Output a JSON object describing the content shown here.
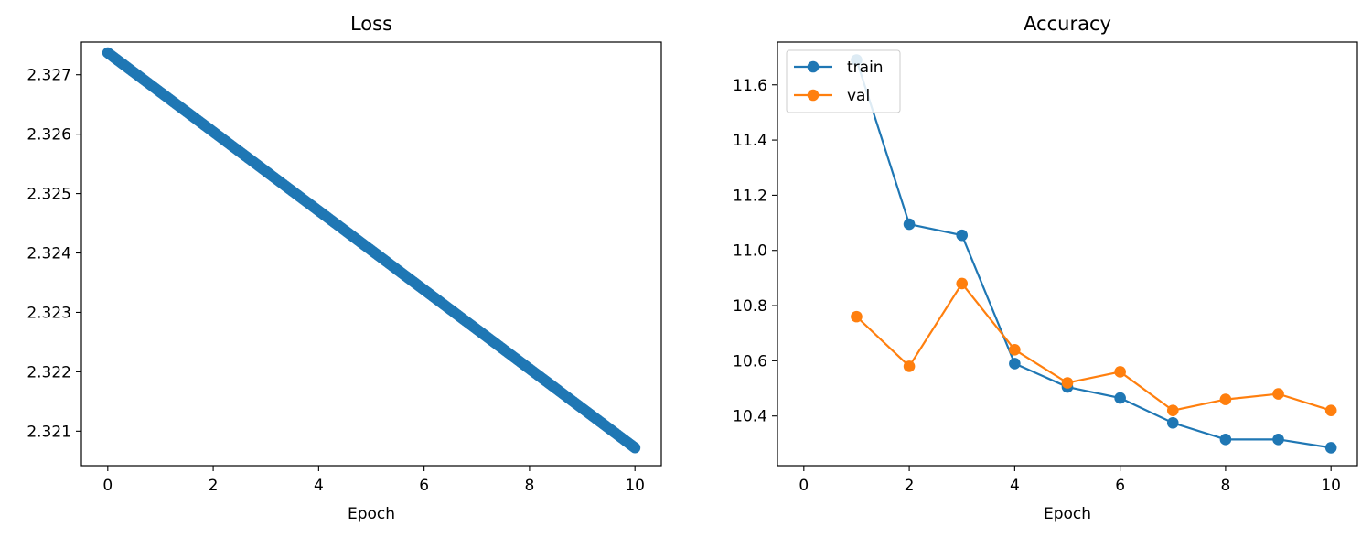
{
  "colors": {
    "train": "#1f77b4",
    "val": "#ff7f0e",
    "axes": "#000000"
  },
  "chart_data": [
    {
      "type": "scatter",
      "title": "Loss",
      "xlabel": "Epoch",
      "ylabel": "",
      "xlim": [
        -0.5,
        10.5
      ],
      "ylim": [
        2.32042,
        2.32755
      ],
      "xticks": [
        0,
        2,
        4,
        6,
        8,
        10
      ],
      "yticks": [
        2.321,
        2.322,
        2.323,
        2.324,
        2.325,
        2.326,
        2.327
      ],
      "series": [
        {
          "color": "#1f77b4",
          "line_start": [
            0,
            2.32737
          ],
          "line_end": [
            10,
            2.32072
          ],
          "points_per_epoch": 30
        }
      ],
      "grid": false
    },
    {
      "type": "line",
      "title": "Accuracy",
      "xlabel": "Epoch",
      "ylabel": "",
      "xlim": [
        -0.5,
        10.5
      ],
      "ylim": [
        10.22,
        11.755
      ],
      "xticks": [
        0,
        2,
        4,
        6,
        8,
        10
      ],
      "yticks": [
        10.4,
        10.6,
        10.8,
        11.0,
        11.2,
        11.4,
        11.6
      ],
      "x": [
        1,
        2,
        3,
        4,
        5,
        6,
        7,
        8,
        9,
        10
      ],
      "series": [
        {
          "name": "train",
          "color": "#1f77b4",
          "values": [
            11.69,
            11.095,
            11.055,
            10.59,
            10.505,
            10.465,
            10.375,
            10.315,
            10.315,
            10.285
          ]
        },
        {
          "name": "val",
          "color": "#ff7f0e",
          "values": [
            10.76,
            10.58,
            10.88,
            10.64,
            10.52,
            10.56,
            10.42,
            10.46,
            10.48,
            10.42
          ]
        }
      ],
      "legend": "top-left",
      "grid": false
    }
  ]
}
